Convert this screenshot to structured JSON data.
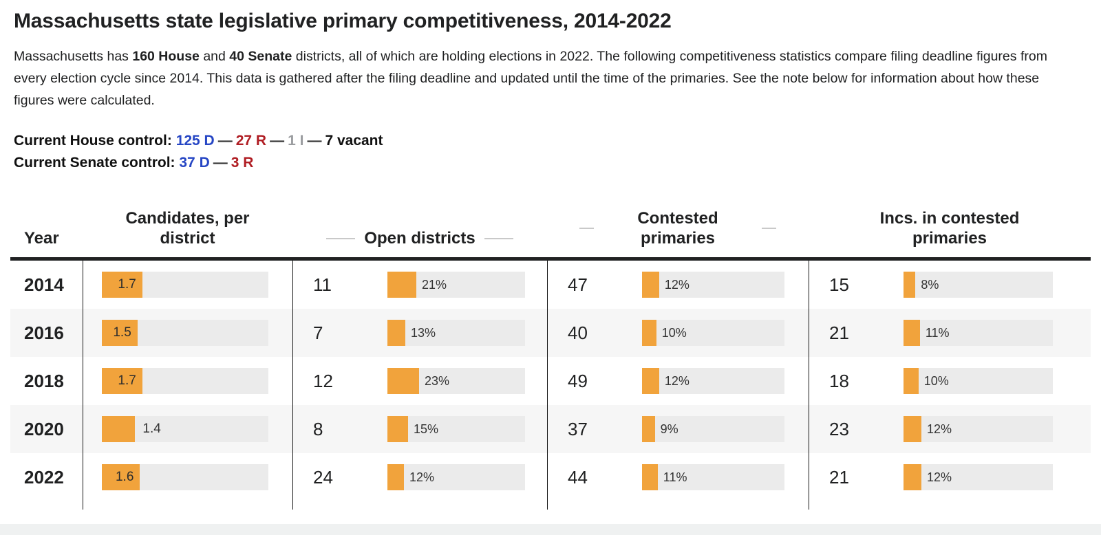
{
  "header": {
    "title": "Massachusetts state legislative primary competitiveness, 2014-2022"
  },
  "intro": {
    "p1": "Massachusetts has ",
    "b1": "160 House",
    "p2": " and ",
    "b2": "40 Senate",
    "p3": " districts, all of which are holding elections in 2022. The following competitiveness statistics compare filing deadline figures from every election cycle since 2014. This data is gathered after the filing deadline and updated until the time of the primaries. See the note below for information about how these figures were calculated."
  },
  "controls": {
    "separator": "—",
    "house": {
      "label": "Current House control:",
      "dem": "125 D",
      "rep": "27 R",
      "ind": "1 I",
      "vacant": "7 vacant"
    },
    "senate": {
      "label": "Current Senate control:",
      "dem": "37 D",
      "rep": "3 R"
    }
  },
  "colors": {
    "dem_blue": "#2646c4",
    "rep_red": "#b01e24",
    "ind_gray": "#9b9da0",
    "bar_orange": "#f1a33c",
    "bar_track_gray": "#ebebeb",
    "row_stripe_gray": "#f6f6f6",
    "rule_dark": "#202122"
  },
  "chart_data": {
    "type": "table",
    "title": "Massachusetts state legislative primary competitiveness, 2014-2022",
    "columns": [
      "Year",
      "Candidates, per district",
      "Open districts",
      "Contested primaries",
      "Incs. in contested primaries"
    ],
    "cpd_bar_axis_max": 7,
    "rows": [
      {
        "year": "2014",
        "candidates_per_district": "1.7",
        "cpd_bar_pct": 24.3,
        "cpd_label_outside": false,
        "open_districts": "11",
        "open_pct_label": "21%",
        "open_pct_value": 21,
        "contested_primaries": "47",
        "contested_pct_label": "12%",
        "contested_pct_value": 12,
        "incs_in_contested": "15",
        "incs_pct_label": "8%",
        "incs_pct_value": 8
      },
      {
        "year": "2016",
        "candidates_per_district": "1.5",
        "cpd_bar_pct": 21.4,
        "cpd_label_outside": false,
        "open_districts": "7",
        "open_pct_label": "13%",
        "open_pct_value": 13,
        "contested_primaries": "40",
        "contested_pct_label": "10%",
        "contested_pct_value": 10,
        "incs_in_contested": "21",
        "incs_pct_label": "11%",
        "incs_pct_value": 11
      },
      {
        "year": "2018",
        "candidates_per_district": "1.7",
        "cpd_bar_pct": 24.3,
        "cpd_label_outside": false,
        "open_districts": "12",
        "open_pct_label": "23%",
        "open_pct_value": 23,
        "contested_primaries": "49",
        "contested_pct_label": "12%",
        "contested_pct_value": 12,
        "incs_in_contested": "18",
        "incs_pct_label": "10%",
        "incs_pct_value": 10
      },
      {
        "year": "2020",
        "candidates_per_district": "1.4",
        "cpd_bar_pct": 20.0,
        "cpd_label_outside": true,
        "open_districts": "8",
        "open_pct_label": "15%",
        "open_pct_value": 15,
        "contested_primaries": "37",
        "contested_pct_label": "9%",
        "contested_pct_value": 9,
        "incs_in_contested": "23",
        "incs_pct_label": "12%",
        "incs_pct_value": 12
      },
      {
        "year": "2022",
        "candidates_per_district": "1.6",
        "cpd_bar_pct": 22.9,
        "cpd_label_outside": false,
        "open_districts": "24",
        "open_pct_label": "12%",
        "open_pct_value": 12,
        "contested_primaries": "44",
        "contested_pct_label": "11%",
        "contested_pct_value": 11,
        "incs_in_contested": "21",
        "incs_pct_label": "12%",
        "incs_pct_value": 12
      }
    ]
  }
}
